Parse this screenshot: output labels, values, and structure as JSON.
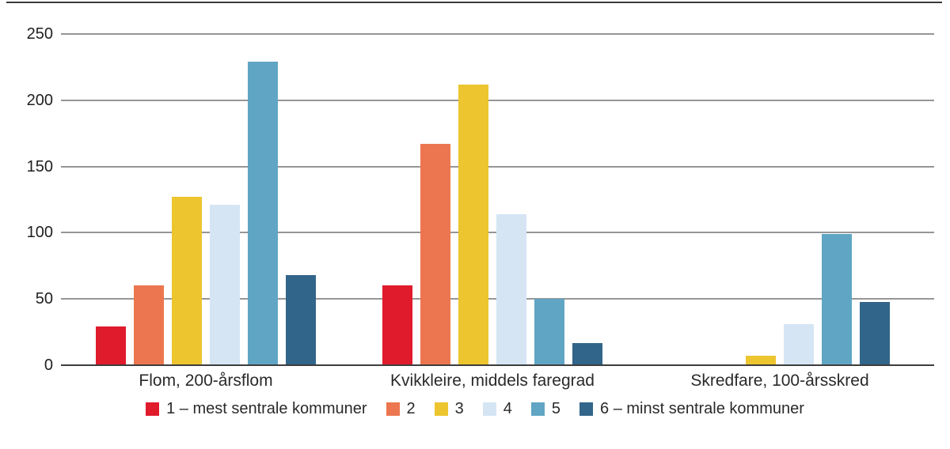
{
  "figure": {
    "background_color": "#ffffff",
    "top_border_color": "#3a3a3a",
    "gridline_color": "#969696",
    "baseline_color": "#3d3d3d",
    "text_color": "#2a2a2a"
  },
  "chart_data": {
    "type": "bar",
    "title": "",
    "xlabel": "",
    "ylabel": "",
    "categories": [
      "Flom, 200-årsflom",
      "Kvikkleire, middels faregrad",
      "Skredfare, 100-årsskred"
    ],
    "series": [
      {
        "name": "1 – mest sentrale kommuner",
        "color": "#e01b2c",
        "values": [
          29,
          60,
          0
        ]
      },
      {
        "name": "2",
        "color": "#ec764f",
        "values": [
          60,
          167,
          0
        ]
      },
      {
        "name": "3",
        "color": "#ecc52f",
        "values": [
          127,
          212,
          7
        ]
      },
      {
        "name": "4",
        "color": "#d5e5f4",
        "values": [
          121,
          114,
          31
        ]
      },
      {
        "name": "5",
        "color": "#60a5c4",
        "values": [
          229,
          50,
          99
        ]
      },
      {
        "name": "6 – minst sentrale kommuner",
        "color": "#32658a",
        "values": [
          68,
          17,
          48
        ]
      }
    ],
    "ylim": [
      0,
      250
    ],
    "yticks": [
      0,
      50,
      100,
      150,
      200,
      250
    ],
    "grid": true,
    "legend_position": "bottom"
  }
}
